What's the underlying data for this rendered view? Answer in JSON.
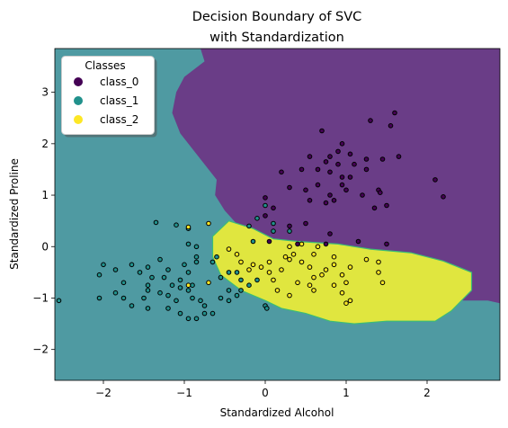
{
  "chart_data": {
    "type": "scatter",
    "title": "Decision Boundary of SVC",
    "subtitle": "with Standardization",
    "xlabel": "Standardized Alcohol",
    "ylabel": "Standardized Proline",
    "xlim": [
      -2.6,
      2.9
    ],
    "ylim": [
      -2.6,
      3.85
    ],
    "xticks": [
      -2,
      -1,
      0,
      1,
      2
    ],
    "yticks": [
      -2,
      -1,
      0,
      1,
      2,
      3
    ],
    "grid": false,
    "legend": {
      "title": "Classes",
      "placement": "top-left",
      "entries": [
        "class_0",
        "class_1",
        "class_2"
      ]
    },
    "colors": {
      "class_0": "#440154",
      "class_1": "#21918c",
      "class_2": "#fde725",
      "region_class_0": "#6a3d87",
      "region_class_1": "#4f9aa2",
      "region_class_2": "#e0e63f"
    },
    "regions": {
      "class_0": [
        [
          -1.15,
          3.85
        ],
        [
          -0.8,
          3.85
        ],
        [
          -0.75,
          3.6
        ],
        [
          -1.0,
          3.3
        ],
        [
          -1.1,
          3.0
        ],
        [
          -1.15,
          2.6
        ],
        [
          -1.05,
          2.2
        ],
        [
          -0.8,
          1.7
        ],
        [
          -0.6,
          1.3
        ],
        [
          -0.62,
          1.0
        ],
        [
          -0.5,
          0.7
        ],
        [
          -0.3,
          0.35
        ],
        [
          0.0,
          0.15
        ],
        [
          0.4,
          0.1
        ],
        [
          0.9,
          0.05
        ],
        [
          1.3,
          -0.05
        ],
        [
          1.8,
          -0.12
        ],
        [
          2.2,
          -0.28
        ],
        [
          2.55,
          -0.5
        ],
        [
          2.55,
          -0.8
        ],
        [
          2.3,
          -1.0
        ],
        [
          2.45,
          -1.05
        ],
        [
          2.75,
          -1.05
        ],
        [
          2.9,
          -1.1
        ],
        [
          2.9,
          3.85
        ]
      ],
      "class_2": [
        [
          -0.65,
          0.2
        ],
        [
          -0.45,
          0.5
        ],
        [
          -0.15,
          0.35
        ],
        [
          0.1,
          0.15
        ],
        [
          0.4,
          0.1
        ],
        [
          0.9,
          0.05
        ],
        [
          1.3,
          -0.05
        ],
        [
          1.8,
          -0.12
        ],
        [
          2.2,
          -0.28
        ],
        [
          2.55,
          -0.5
        ],
        [
          2.55,
          -0.85
        ],
        [
          2.3,
          -1.25
        ],
        [
          2.1,
          -1.45
        ],
        [
          1.5,
          -1.45
        ],
        [
          1.1,
          -1.5
        ],
        [
          0.8,
          -1.45
        ],
        [
          0.5,
          -1.3
        ],
        [
          0.2,
          -1.2
        ],
        [
          0.0,
          -1.05
        ],
        [
          -0.3,
          -0.85
        ],
        [
          -0.55,
          -0.55
        ],
        [
          -0.65,
          -0.2
        ]
      ]
    },
    "series": [
      {
        "name": "class_0",
        "points": [
          [
            1.6,
            2.6
          ],
          [
            1.3,
            2.45
          ],
          [
            1.55,
            2.35
          ],
          [
            0.7,
            2.25
          ],
          [
            0.95,
            2.0
          ],
          [
            0.9,
            1.85
          ],
          [
            1.05,
            1.8
          ],
          [
            0.55,
            1.75
          ],
          [
            0.8,
            1.75
          ],
          [
            1.25,
            1.7
          ],
          [
            1.45,
            1.7
          ],
          [
            0.75,
            1.65
          ],
          [
            0.9,
            1.6
          ],
          [
            1.1,
            1.6
          ],
          [
            1.65,
            1.75
          ],
          [
            1.25,
            1.5
          ],
          [
            0.2,
            1.45
          ],
          [
            0.45,
            1.5
          ],
          [
            0.65,
            1.5
          ],
          [
            0.8,
            1.45
          ],
          [
            0.95,
            1.35
          ],
          [
            1.05,
            1.35
          ],
          [
            0.95,
            1.2
          ],
          [
            0.65,
            1.2
          ],
          [
            1.0,
            1.1
          ],
          [
            1.4,
            1.1
          ],
          [
            1.42,
            1.05
          ],
          [
            2.1,
            1.3
          ],
          [
            0.3,
            1.15
          ],
          [
            0.5,
            1.1
          ],
          [
            0.8,
            1.0
          ],
          [
            0.85,
            0.9
          ],
          [
            1.2,
            1.0
          ],
          [
            1.5,
            0.8
          ],
          [
            1.35,
            0.75
          ],
          [
            2.2,
            0.97
          ],
          [
            0.0,
            0.6
          ],
          [
            0.1,
            0.75
          ],
          [
            0.0,
            0.95
          ],
          [
            0.55,
            0.9
          ],
          [
            0.75,
            0.85
          ],
          [
            0.5,
            0.45
          ],
          [
            0.3,
            0.4
          ],
          [
            0.8,
            0.25
          ],
          [
            1.15,
            0.1
          ],
          [
            1.5,
            0.05
          ],
          [
            0.05,
            0.1
          ],
          [
            0.4,
            0.05
          ],
          [
            0.75,
            0.05
          ]
        ]
      },
      {
        "name": "class_1",
        "points": [
          [
            -2.55,
            -1.05
          ],
          [
            -2.0,
            -0.35
          ],
          [
            -2.05,
            -0.55
          ],
          [
            -1.85,
            -0.45
          ],
          [
            -1.65,
            -0.35
          ],
          [
            -1.55,
            -0.5
          ],
          [
            -1.45,
            -0.4
          ],
          [
            -1.3,
            -0.25
          ],
          [
            -1.2,
            -0.45
          ],
          [
            -1.0,
            -0.35
          ],
          [
            -0.95,
            -0.5
          ],
          [
            -0.85,
            -0.3
          ],
          [
            -1.05,
            -0.65
          ],
          [
            -0.9,
            -0.75
          ],
          [
            -1.75,
            -0.7
          ],
          [
            -1.45,
            -0.75
          ],
          [
            -1.4,
            -0.6
          ],
          [
            -1.25,
            -0.6
          ],
          [
            -1.15,
            -0.75
          ],
          [
            -1.05,
            -0.8
          ],
          [
            -0.95,
            -0.85
          ],
          [
            -2.05,
            -1.0
          ],
          [
            -1.85,
            -0.9
          ],
          [
            -1.75,
            -1.0
          ],
          [
            -1.5,
            -1.0
          ],
          [
            -1.45,
            -0.85
          ],
          [
            -1.3,
            -0.9
          ],
          [
            -1.2,
            -0.95
          ],
          [
            -1.1,
            -1.05
          ],
          [
            -0.9,
            -1.0
          ],
          [
            -0.8,
            -1.05
          ],
          [
            -0.75,
            -1.15
          ],
          [
            -1.65,
            -1.15
          ],
          [
            -1.45,
            -1.2
          ],
          [
            -1.2,
            -1.2
          ],
          [
            -1.05,
            -1.3
          ],
          [
            -0.95,
            -1.4
          ],
          [
            -0.85,
            -1.4
          ],
          [
            -0.75,
            -1.3
          ],
          [
            -0.65,
            -1.3
          ],
          [
            -0.55,
            -1.0
          ],
          [
            -0.45,
            -1.05
          ],
          [
            -0.35,
            -0.95
          ],
          [
            -0.45,
            -0.85
          ],
          [
            -0.3,
            -0.85
          ],
          [
            -0.2,
            -0.75
          ],
          [
            -0.1,
            -0.65
          ],
          [
            0.0,
            -1.15
          ],
          [
            0.02,
            -1.2
          ],
          [
            -0.55,
            -0.6
          ],
          [
            -0.45,
            -0.5
          ],
          [
            -0.35,
            -0.5
          ],
          [
            -0.3,
            -0.65
          ],
          [
            -0.65,
            -0.3
          ],
          [
            -0.6,
            -0.2
          ],
          [
            -0.95,
            0.35
          ],
          [
            -1.1,
            0.42
          ],
          [
            -1.35,
            0.47
          ],
          [
            -0.95,
            0.05
          ],
          [
            -0.85,
            0.0
          ],
          [
            -0.85,
            -0.2
          ],
          [
            -0.2,
            0.4
          ],
          [
            0.3,
            0.3
          ],
          [
            0.1,
            0.45
          ],
          [
            0.0,
            0.8
          ],
          [
            0.1,
            0.3
          ],
          [
            -0.15,
            0.1
          ],
          [
            -0.1,
            0.55
          ]
        ]
      },
      {
        "name": "class_2",
        "points": [
          [
            -0.7,
            0.45
          ],
          [
            -0.95,
            0.38
          ],
          [
            -0.7,
            -0.7
          ],
          [
            -0.95,
            -0.75
          ],
          [
            -0.45,
            -0.05
          ],
          [
            -0.35,
            -0.15
          ],
          [
            -0.3,
            -0.3
          ],
          [
            -0.2,
            -0.45
          ],
          [
            -0.05,
            -0.4
          ],
          [
            0.05,
            -0.5
          ],
          [
            0.1,
            -0.65
          ],
          [
            0.2,
            -0.45
          ],
          [
            0.25,
            -0.2
          ],
          [
            0.3,
            -0.25
          ],
          [
            0.45,
            -0.3
          ],
          [
            0.55,
            -0.4
          ],
          [
            0.6,
            -0.6
          ],
          [
            0.55,
            -0.75
          ],
          [
            0.6,
            -0.85
          ],
          [
            0.7,
            -0.55
          ],
          [
            0.75,
            -0.45
          ],
          [
            0.85,
            -0.35
          ],
          [
            0.95,
            -0.55
          ],
          [
            1.0,
            -0.7
          ],
          [
            0.85,
            -0.75
          ],
          [
            0.95,
            -0.9
          ],
          [
            1.05,
            -1.05
          ],
          [
            1.05,
            -0.4
          ],
          [
            1.25,
            -0.25
          ],
          [
            1.4,
            -0.5
          ],
          [
            1.45,
            -0.7
          ],
          [
            1.4,
            -0.3
          ],
          [
            0.35,
            -0.15
          ],
          [
            0.3,
            0.0
          ],
          [
            0.45,
            0.05
          ],
          [
            0.05,
            -0.3
          ],
          [
            -0.15,
            -0.35
          ],
          [
            0.15,
            -0.85
          ],
          [
            0.65,
            0.0
          ],
          [
            0.4,
            -0.7
          ],
          [
            0.3,
            -0.95
          ],
          [
            1.0,
            -1.1
          ],
          [
            0.85,
            -0.2
          ],
          [
            0.6,
            -0.15
          ]
        ]
      }
    ]
  }
}
